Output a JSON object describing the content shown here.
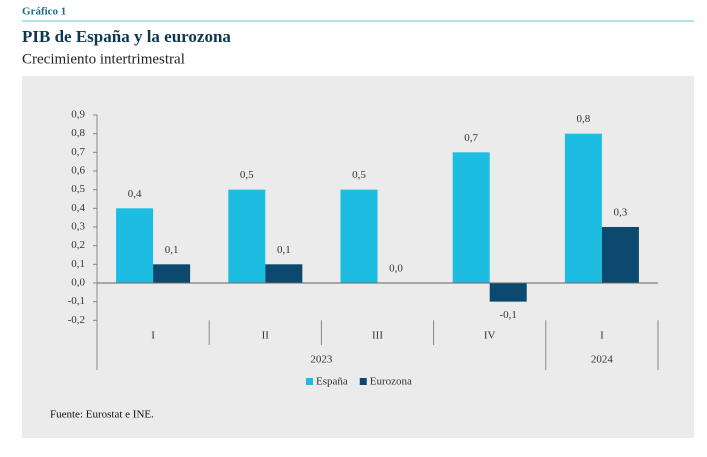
{
  "header": {
    "label": "Gráfico 1",
    "title": "PIB de España y la eurozona",
    "subtitle": "Crecimiento intertrimestral"
  },
  "chart_data": {
    "type": "bar",
    "groups": [
      {
        "label": "2023",
        "categories": [
          "I",
          "II",
          "III",
          "IV"
        ]
      },
      {
        "label": "2024",
        "categories": [
          "I"
        ]
      }
    ],
    "series": [
      {
        "name": "España",
        "color": "#1cbde0",
        "values": [
          0.4,
          0.5,
          0.5,
          0.7,
          0.8
        ],
        "value_labels": [
          "0,4",
          "0,5",
          "0,5",
          "0,7",
          "0,8"
        ]
      },
      {
        "name": "Eurozona",
        "color": "#0b4a6e",
        "values": [
          0.1,
          0.1,
          0.0,
          -0.1,
          0.3
        ],
        "value_labels": [
          "0,1",
          "0,1",
          "0,0",
          "-0,1",
          "0,3"
        ]
      }
    ],
    "ylim": [
      -0.2,
      0.9
    ],
    "yticks": [
      {
        "value": -0.2,
        "label": "-0,2"
      },
      {
        "value": -0.1,
        "label": "-0,1"
      },
      {
        "value": 0,
        "label": "0,0"
      },
      {
        "value": 0.1,
        "label": "0,1"
      },
      {
        "value": 0.2,
        "label": "0,2"
      },
      {
        "value": 0.3,
        "label": "0,3"
      },
      {
        "value": 0.4,
        "label": "0,4"
      },
      {
        "value": 0.5,
        "label": "0,5"
      },
      {
        "value": 0.6,
        "label": "0,6"
      },
      {
        "value": 0.7,
        "label": "0,7"
      },
      {
        "value": 0.8,
        "label": "0,8"
      },
      {
        "value": 0.9,
        "label": "0,9"
      }
    ],
    "grid": false,
    "legend": "bottom"
  },
  "source": "Fuente: Eurostat e INE."
}
